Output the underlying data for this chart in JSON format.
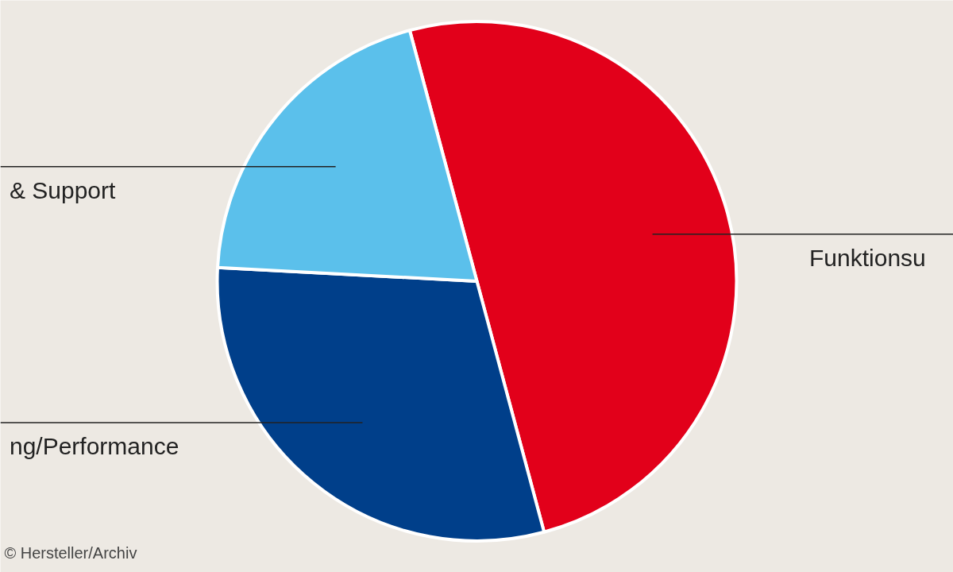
{
  "chart_data": {
    "type": "pie",
    "categories": [
      "Funktionsu",
      "ng/Performance",
      "& Support"
    ],
    "values": [
      50,
      30,
      20
    ],
    "colors": [
      "#e2001a",
      "#003f8a",
      "#5bc0eb"
    ],
    "annotations": [
      "© Hersteller/Archiv"
    ]
  }
}
